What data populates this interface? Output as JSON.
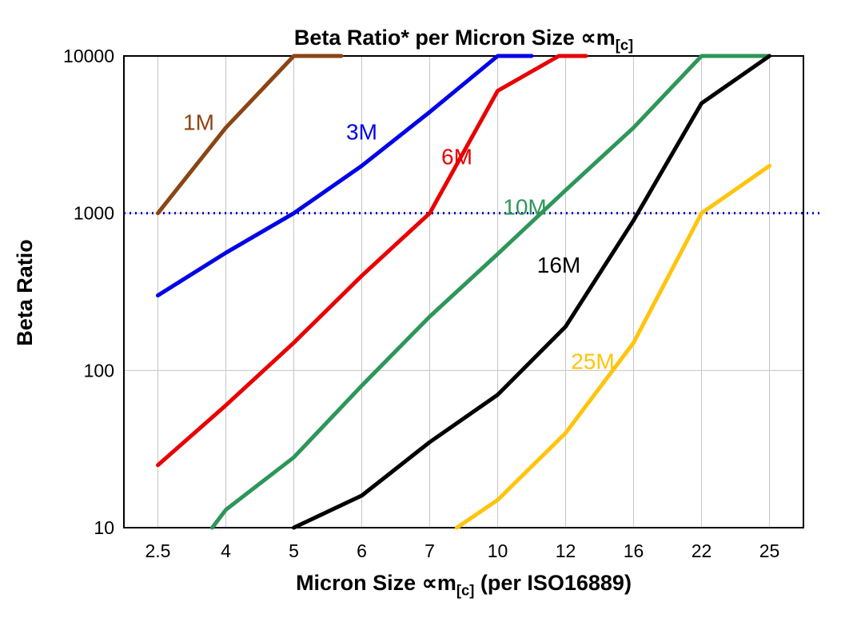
{
  "chart_data": {
    "type": "line",
    "title": "Beta Ratio* per Micron Size ∝m[c]",
    "title_main": "Beta Ratio* per Micron Size ∝m",
    "title_sub": "[c]",
    "ylabel": "Beta Ratio",
    "xlabel": "Micron Size ∝m[c] (per ISO16889)",
    "xlabel_main": "Micron Size ∝m",
    "xlabel_sub": "[c]",
    "xlabel_tail": " (per ISO16889)",
    "x_categories": [
      "2.5",
      "4",
      "5",
      "6",
      "7",
      "10",
      "12",
      "16",
      "22",
      "25"
    ],
    "x_axis_note": "categorical axis, equally spaced; ci = category index in points",
    "y_scale": "log",
    "ylim": [
      10,
      10000
    ],
    "y_ticks": [
      10,
      100,
      1000,
      10000
    ],
    "grid": true,
    "grid_color": "#c6c6c6",
    "legend_position": "inline-labels",
    "reference_line": {
      "y": 1000,
      "color": "#0000cc",
      "style": "dotted"
    },
    "series": [
      {
        "name": "1M",
        "color": "#8B4513",
        "points_ci_value": [
          [
            0,
            1000
          ],
          [
            1,
            3500
          ],
          [
            2,
            10000
          ],
          [
            2.7,
            10000
          ]
        ],
        "label": {
          "ci": 0.6,
          "value": 3800
        }
      },
      {
        "name": "3M",
        "color": "#0000E8",
        "points_ci_value": [
          [
            0,
            300
          ],
          [
            1,
            560
          ],
          [
            2,
            1000
          ],
          [
            3,
            2000
          ],
          [
            4,
            4400
          ],
          [
            5,
            10000
          ],
          [
            5.5,
            10000
          ]
        ],
        "label": {
          "ci": 3.0,
          "value": 3300
        }
      },
      {
        "name": "6M",
        "color": "#E80000",
        "points_ci_value": [
          [
            0,
            25
          ],
          [
            1,
            60
          ],
          [
            2,
            150
          ],
          [
            3,
            400
          ],
          [
            4,
            1000
          ],
          [
            5,
            6000
          ],
          [
            5.9,
            10000
          ],
          [
            6.3,
            10000
          ]
        ],
        "label": {
          "ci": 4.4,
          "value": 2300
        }
      },
      {
        "name": "10M",
        "color": "#2E9658",
        "points_ci_value": [
          [
            0.8,
            10
          ],
          [
            1,
            13
          ],
          [
            2,
            28
          ],
          [
            3,
            80
          ],
          [
            4,
            220
          ],
          [
            5,
            550
          ],
          [
            6,
            1400
          ],
          [
            7,
            3500
          ],
          [
            8,
            10000
          ],
          [
            9,
            10000
          ]
        ],
        "label": {
          "ci": 5.4,
          "value": 1100
        }
      },
      {
        "name": "16M",
        "color": "#000000",
        "points_ci_value": [
          [
            2,
            10
          ],
          [
            3,
            16
          ],
          [
            4,
            35
          ],
          [
            5,
            70
          ],
          [
            6,
            190
          ],
          [
            7,
            900
          ],
          [
            8,
            5000
          ],
          [
            9,
            10000
          ]
        ],
        "label": {
          "ci": 5.9,
          "value": 470
        }
      },
      {
        "name": "25M",
        "color": "#FFC40C",
        "points_ci_value": [
          [
            4.4,
            10
          ],
          [
            5,
            15
          ],
          [
            6,
            40
          ],
          [
            7,
            150
          ],
          [
            8,
            1000
          ],
          [
            9,
            2000
          ]
        ],
        "label": {
          "ci": 6.4,
          "value": 115
        }
      }
    ]
  }
}
